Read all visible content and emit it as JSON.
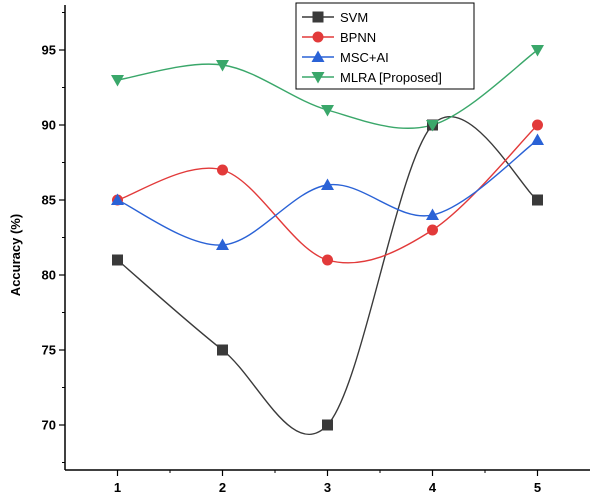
{
  "chart_data": {
    "type": "line",
    "x": [
      1,
      2,
      3,
      4,
      5
    ],
    "xticks": [
      "1",
      "2",
      "3",
      "4",
      "5"
    ],
    "yticks": [
      "70",
      "75",
      "80",
      "85",
      "90",
      "95"
    ],
    "ylabel": "Accuracy (%)",
    "xlabel": "",
    "xlim": [
      0.5,
      5.5
    ],
    "ylim": [
      67,
      98
    ],
    "grid": false,
    "smooth": true,
    "legend_position": "top-center",
    "series": [
      {
        "name": "SVM",
        "values": [
          81,
          75,
          70,
          90,
          85
        ],
        "color": "#3a3a3a",
        "marker": "square"
      },
      {
        "name": "BPNN",
        "values": [
          85,
          87,
          81,
          83,
          90
        ],
        "color": "#e23a3a",
        "marker": "circle"
      },
      {
        "name": "MSC+AI",
        "values": [
          85,
          82,
          86,
          84,
          89
        ],
        "color": "#2a62d6",
        "marker": "triangle-up"
      },
      {
        "name": "MLRA [Proposed]",
        "values": [
          93,
          94,
          91,
          90,
          95
        ],
        "color": "#3aa76a",
        "marker": "triangle-down"
      }
    ]
  }
}
